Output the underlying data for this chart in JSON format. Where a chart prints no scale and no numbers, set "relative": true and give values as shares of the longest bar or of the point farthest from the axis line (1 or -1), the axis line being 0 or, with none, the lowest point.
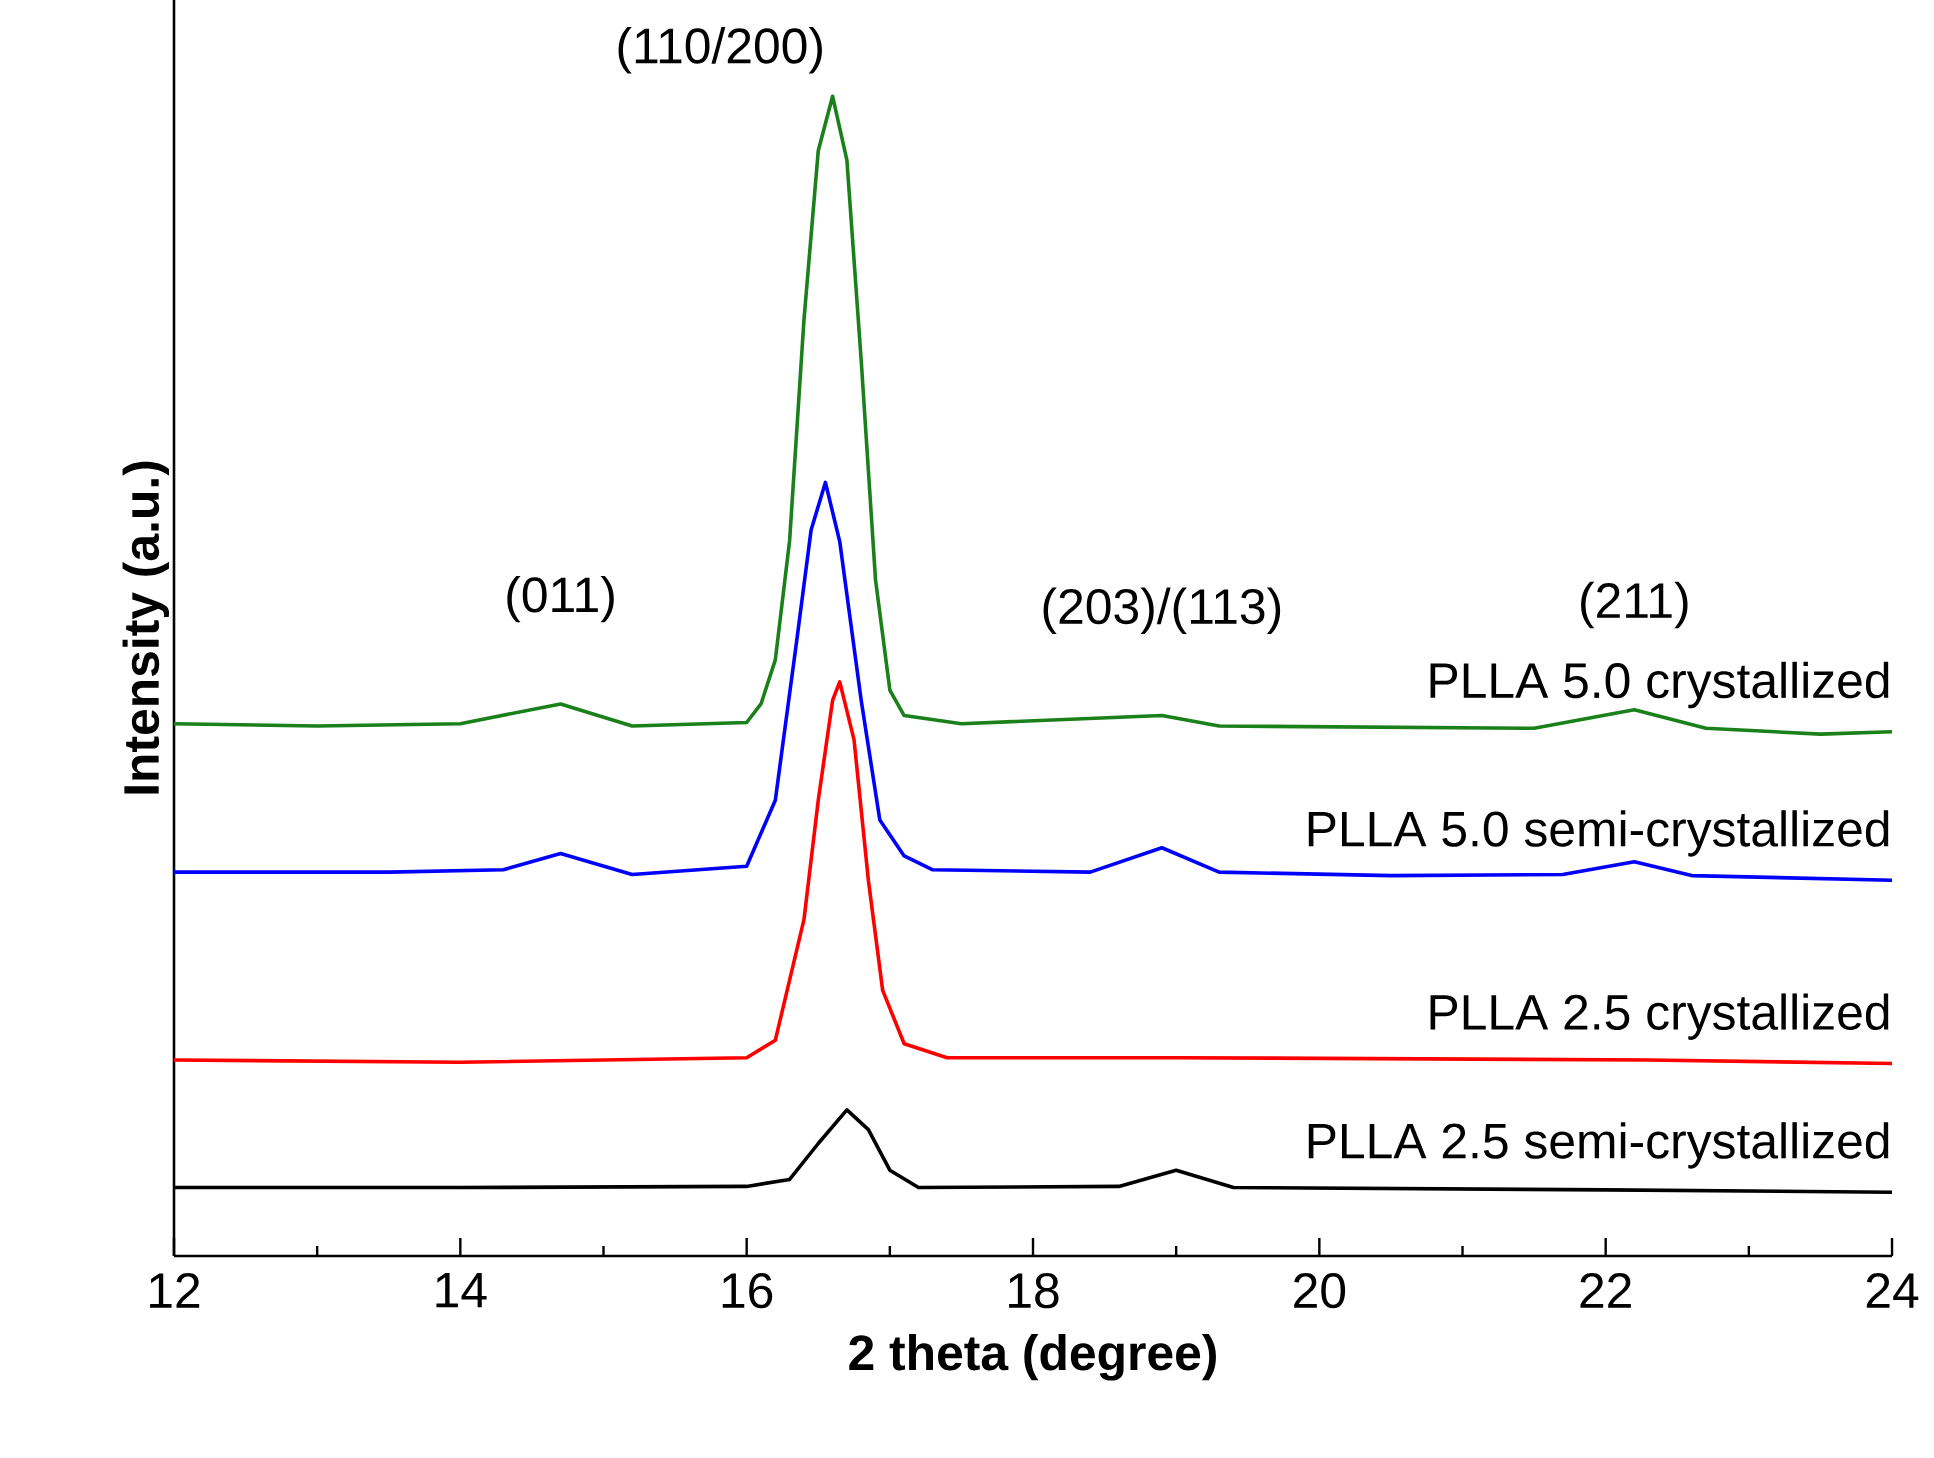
{
  "chart_data": {
    "type": "line",
    "relative": true,
    "xlabel": "2 theta (degree)",
    "ylabel": "Intensity (a.u.)",
    "xlim": [
      12,
      24
    ],
    "xticks": [
      12,
      14,
      16,
      18,
      20,
      22,
      24
    ],
    "marker": "none",
    "line_style": "solid",
    "series": [
      {
        "name": "PLLA 5.0 crystallized",
        "color": "#1a801a",
        "x": [
          12.0,
          13.0,
          14.0,
          14.7,
          15.2,
          16.0,
          16.1,
          16.2,
          16.3,
          16.4,
          16.5,
          16.6,
          16.7,
          16.8,
          16.9,
          17.0,
          17.1,
          17.5,
          18.9,
          19.3,
          21.5,
          22.2,
          22.7,
          23.5,
          24.0
        ],
        "values": [
          0.459,
          0.457,
          0.459,
          0.476,
          0.457,
          0.46,
          0.476,
          0.514,
          0.617,
          0.807,
          0.953,
          1.0,
          0.945,
          0.772,
          0.583,
          0.488,
          0.466,
          0.459,
          0.466,
          0.457,
          0.455,
          0.471,
          0.455,
          0.45,
          0.452
        ]
      },
      {
        "name": "PLLA 5.0 semi-crystallized",
        "color": "#0000ff",
        "x": [
          12.0,
          13.5,
          14.3,
          14.7,
          15.2,
          16.0,
          16.2,
          16.35,
          16.45,
          16.55,
          16.65,
          16.8,
          16.93,
          17.1,
          17.3,
          18.4,
          18.9,
          19.3,
          20.5,
          21.7,
          22.2,
          22.6,
          24.0
        ],
        "values": [
          0.331,
          0.331,
          0.333,
          0.347,
          0.329,
          0.336,
          0.393,
          0.531,
          0.626,
          0.667,
          0.616,
          0.479,
          0.376,
          0.345,
          0.333,
          0.331,
          0.352,
          0.331,
          0.328,
          0.329,
          0.34,
          0.328,
          0.324
        ]
      },
      {
        "name": "PLLA 2.5 crystallized",
        "color": "#ff0000",
        "x": [
          12.0,
          14.0,
          16.0,
          16.2,
          16.4,
          16.5,
          16.6,
          16.65,
          16.75,
          16.85,
          16.95,
          17.1,
          17.4,
          19.0,
          22.3,
          24.0
        ],
        "values": [
          0.169,
          0.167,
          0.171,
          0.186,
          0.29,
          0.393,
          0.479,
          0.495,
          0.445,
          0.324,
          0.229,
          0.183,
          0.171,
          0.171,
          0.169,
          0.166
        ]
      },
      {
        "name": "PLLA 2.5 semi-crystallized",
        "color": "#000000",
        "x": [
          12.0,
          14.0,
          16.0,
          16.3,
          16.5,
          16.7,
          16.85,
          17.0,
          17.2,
          18.6,
          19.0,
          19.4,
          22.0,
          24.0
        ],
        "values": [
          0.059,
          0.059,
          0.06,
          0.066,
          0.097,
          0.126,
          0.109,
          0.074,
          0.059,
          0.06,
          0.074,
          0.059,
          0.057,
          0.055
        ]
      }
    ],
    "annotations": [
      {
        "text": "(110/200)",
        "x": 16.6,
        "y": 1.0
      },
      {
        "text": "(011)",
        "x": 14.7,
        "y": 0.476
      },
      {
        "text": "(203)/(113)",
        "x": 18.9,
        "y": 0.466
      },
      {
        "text": "(211)",
        "x": 22.2,
        "y": 0.471
      }
    ]
  }
}
